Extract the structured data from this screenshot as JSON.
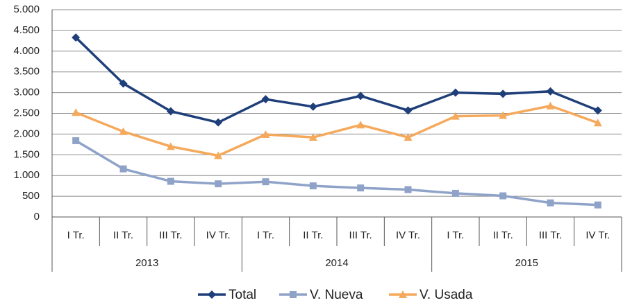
{
  "chart_data": {
    "type": "line",
    "categories": [
      "I Tr.",
      "II Tr.",
      "III Tr.",
      "IV Tr.",
      "I Tr.",
      "II Tr.",
      "III Tr.",
      "IV Tr.",
      "I Tr.",
      "II Tr.",
      "III Tr.",
      "IV Tr."
    ],
    "category_groups": [
      "2013",
      "2014",
      "2015"
    ],
    "series": [
      {
        "name": "Total",
        "color": "#1f3f7a",
        "marker": "diamond",
        "values": [
          4330,
          3220,
          2550,
          2280,
          2840,
          2660,
          2920,
          2570,
          3000,
          2970,
          3030,
          2570
        ]
      },
      {
        "name": "V. Nueva",
        "color": "#8fa3c9",
        "marker": "square",
        "values": [
          1840,
          1160,
          860,
          800,
          850,
          750,
          700,
          660,
          570,
          510,
          340,
          290
        ]
      },
      {
        "name": "V. Usada",
        "color": "#f5a95c",
        "marker": "triangle",
        "values": [
          2520,
          2060,
          1700,
          1480,
          1990,
          1920,
          2220,
          1920,
          2430,
          2450,
          2680,
          2270
        ]
      }
    ],
    "ylim": [
      0,
      5000
    ],
    "yticks": [
      0,
      500,
      {
        "value": 1000,
        "label": "1.000"
      },
      {
        "value": 1500,
        "label": "1.500"
      },
      {
        "value": 2000,
        "label": "2.000"
      },
      {
        "value": 2500,
        "label": "2.500"
      },
      {
        "value": 3000,
        "label": "3.000"
      },
      {
        "value": 3500,
        "label": "3.500"
      },
      {
        "value": 4000,
        "label": "4.000"
      },
      {
        "value": 4500,
        "label": "4.500"
      },
      {
        "value": 5000,
        "label": "5.000"
      }
    ],
    "grid": true,
    "legend": "bottom"
  }
}
